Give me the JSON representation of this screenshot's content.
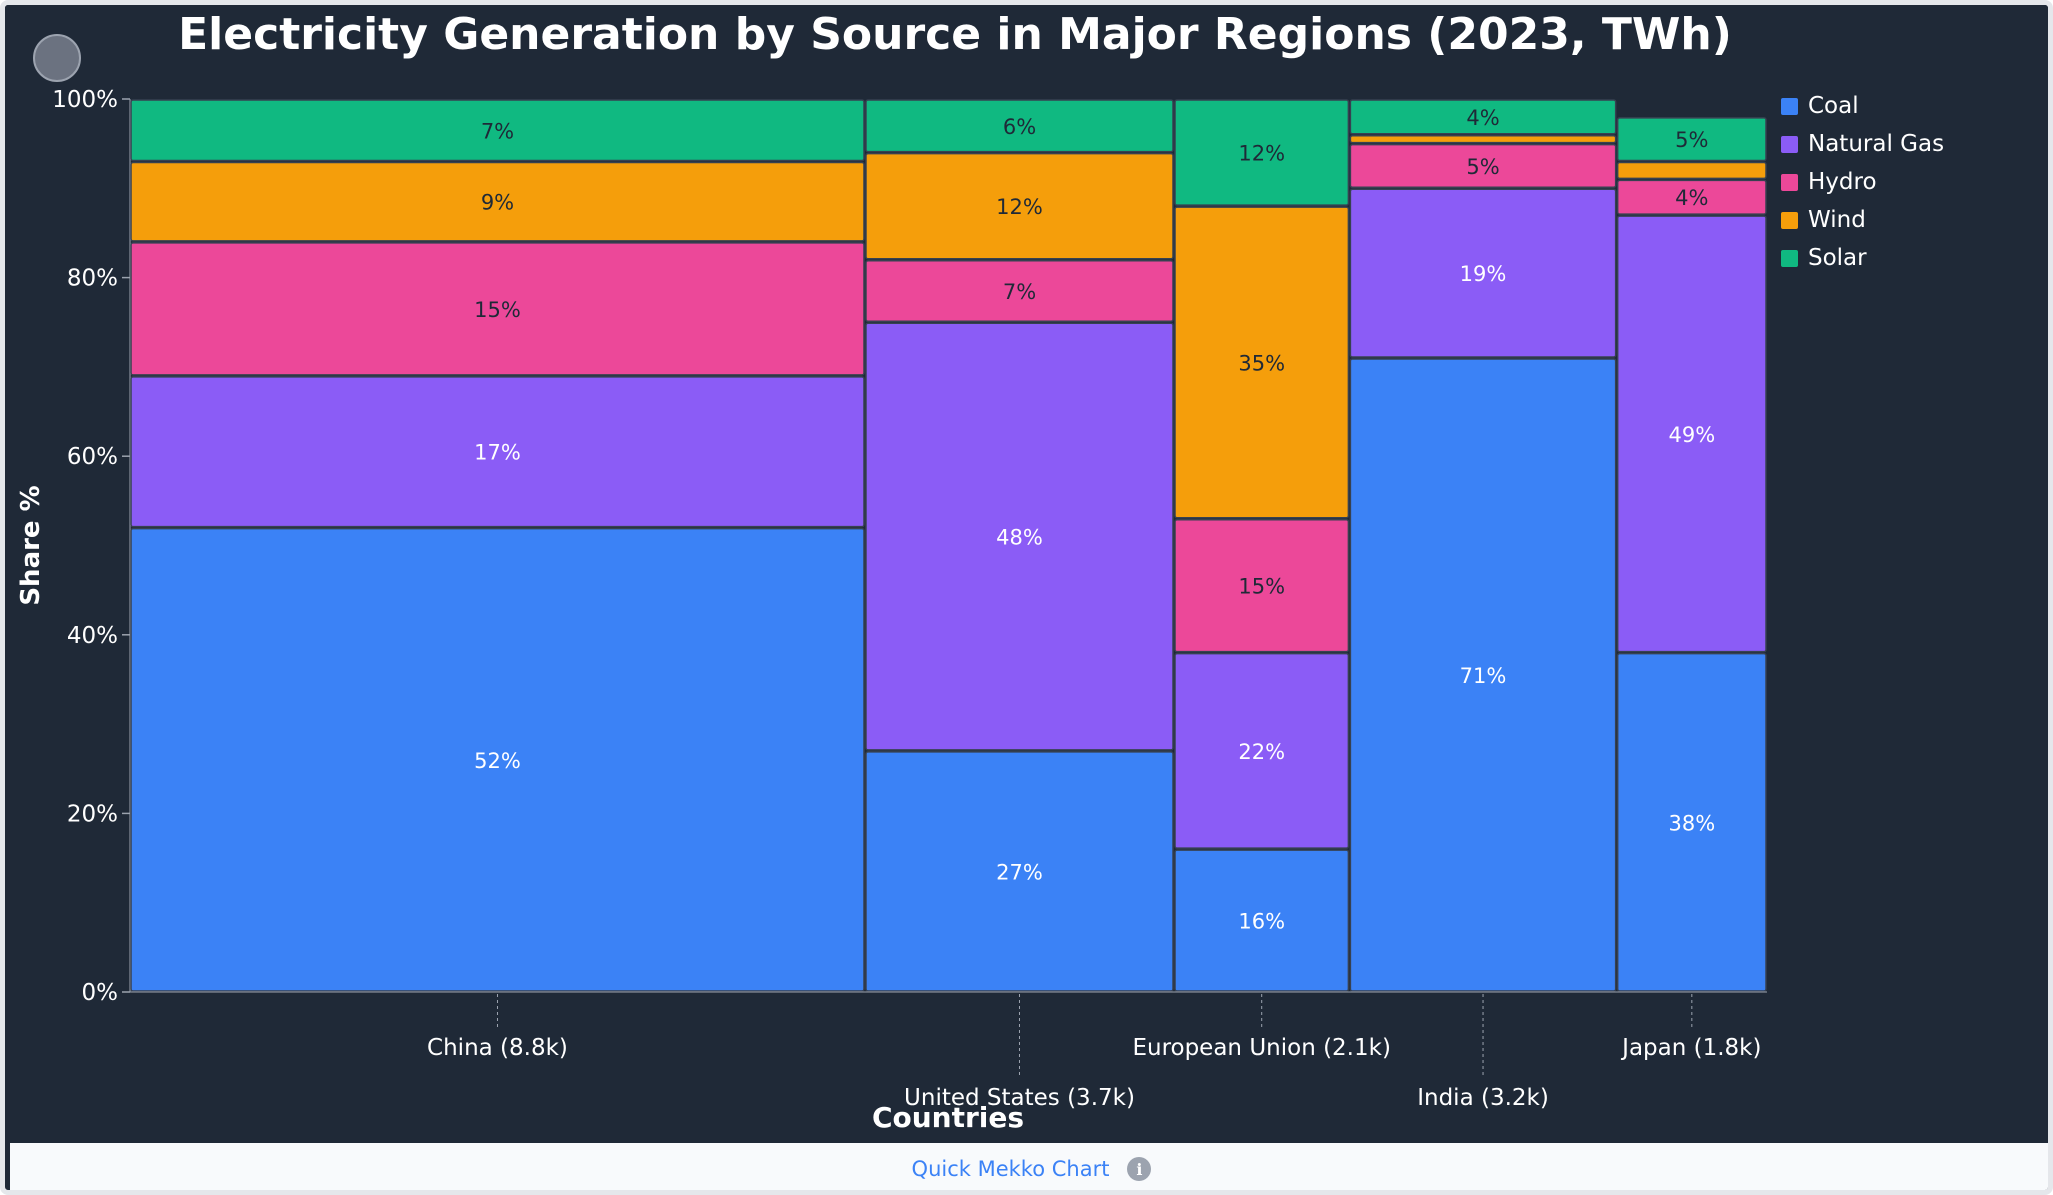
{
  "page": {
    "footer_link": "Quick Mekko Chart",
    "info_icon": "info-icon"
  },
  "colors": {
    "background": "#1f2937",
    "Coal": "#3b82f6",
    "Natural Gas": "#8b5cf6",
    "Hydro": "#ec4899",
    "Wind": "#f59e0b",
    "Solar": "#10b981"
  },
  "chart_data": {
    "type": "mekko",
    "title": "Electricity Generation by Source in Major Regions (2023, TWh)",
    "xlabel": "Countries",
    "ylabel": "Share %",
    "yticks": [
      "0%",
      "20%",
      "40%",
      "60%",
      "80%",
      "100%"
    ],
    "ylim": [
      0,
      100
    ],
    "legend_position": "right",
    "series_names": [
      "Coal",
      "Natural Gas",
      "Hydro",
      "Wind",
      "Solar"
    ],
    "columns": [
      {
        "label": "China (8.8k)",
        "total": 8.8,
        "shares": [
          52,
          17,
          15,
          9,
          7
        ],
        "labels": [
          "52%",
          "17%",
          "15%",
          "9%",
          "7%"
        ]
      },
      {
        "label": "United States (3.7k)",
        "total": 3.7,
        "shares": [
          27,
          48,
          7,
          12,
          6
        ],
        "labels": [
          "27%",
          "48%",
          "7%",
          "12%",
          "6%"
        ]
      },
      {
        "label": "European Union (2.1k)",
        "total": 2.1,
        "shares": [
          16,
          22,
          15,
          35,
          12
        ],
        "labels": [
          "16%",
          "22%",
          "15%",
          "35%",
          "12%"
        ]
      },
      {
        "label": "India (3.2k)",
        "total": 3.2,
        "shares": [
          71,
          19,
          5,
          1,
          4
        ],
        "labels": [
          "71%",
          "19%",
          "5%",
          "",
          "4%"
        ]
      },
      {
        "label": "Japan (1.8k)",
        "total": 1.8,
        "shares": [
          38,
          49,
          4,
          2,
          5
        ],
        "labels": [
          "38%",
          "49%",
          "4%",
          "",
          "5%"
        ]
      }
    ]
  }
}
